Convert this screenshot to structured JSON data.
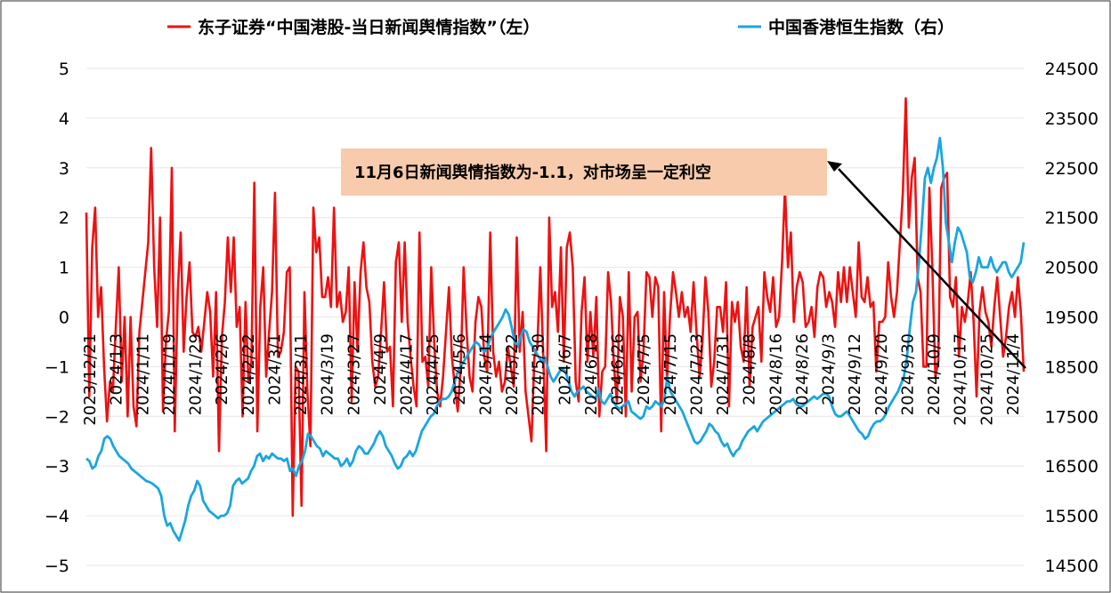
{
  "chart_data": {
    "type": "line",
    "grid": true,
    "legend_position": "top",
    "y_left_lim": [
      -5,
      5
    ],
    "y_left_ticks": [
      "5",
      "4",
      "3",
      "2",
      "1",
      "0",
      "−1",
      "−2",
      "−3",
      "−4",
      "−5"
    ],
    "y_right_lim": [
      14500,
      24500
    ],
    "y_right_ticks": [
      "24500",
      "23500",
      "22500",
      "21500",
      "20500",
      "19500",
      "18500",
      "17500",
      "16500",
      "15500",
      "14500"
    ],
    "x_tick_labels": [
      "2023/12/21",
      "2024/1/3",
      "2024/1/11",
      "2024/1/19",
      "2024/1/29",
      "2024/2/6",
      "2024/2/22",
      "2024/3/1",
      "2024/3/11",
      "2024/3/19",
      "2024/3/27",
      "2024/4/9",
      "2024/4/17",
      "2024/4/25",
      "2024/5/6",
      "2024/5/14",
      "2024/5/22",
      "2024/5/30",
      "2024/6/7",
      "2024/6/18",
      "2024/6/26",
      "2024/7/5",
      "2024/7/15",
      "2024/7/23",
      "2024/7/31",
      "2024/8/8",
      "2024/8/16",
      "2024/8/26",
      "2024/9/3",
      "2024/9/12",
      "2024/9/20",
      "2024/9/30",
      "2024/10/9",
      "2024/10/17",
      "2024/10/25",
      "2024/11/4"
    ],
    "series": [
      {
        "name": "东子证券“中国港股-当日新闻舆情指数”（左）",
        "axis": "left",
        "color": "#ee1111",
        "values": [
          2.1,
          -1.6,
          1.4,
          2.2,
          0,
          0.6,
          -1.0,
          -2.1,
          -1.3,
          -1.5,
          -0.2,
          1.0,
          -1.3,
          0,
          -2.0,
          0,
          -1.8,
          -2.2,
          -0.3,
          0.3,
          0.9,
          1.5,
          3.4,
          1.0,
          -0.2,
          2.0,
          -1.9,
          -0.5,
          0.1,
          3.0,
          -2.3,
          0.5,
          1.7,
          -0.7,
          0.4,
          1.1,
          -0.3,
          -0.4,
          -0.2,
          -0.7,
          -0.1,
          0.5,
          0.1,
          -1.2,
          0.5,
          -2.7,
          -0.4,
          0.3,
          1.6,
          0.5,
          1.6,
          -0.2,
          0.2,
          -2.0,
          0.3,
          -1.3,
          -0.9,
          2.7,
          -2.3,
          0.2,
          1.0,
          -1.2,
          -0.3,
          0.5,
          2.5,
          -0.8,
          -0.7,
          -0.3,
          0.9,
          1.0,
          -4.0,
          -1.0,
          -1.1,
          -3.8,
          0.5,
          -1.5,
          -2.6,
          2.2,
          1.3,
          1.6,
          0.4,
          0.4,
          0.8,
          0.2,
          2.2,
          0.2,
          0.5,
          -0.1,
          0.1,
          1.0,
          -1.7,
          0.7,
          -0.7,
          0.9,
          1.5,
          0.6,
          0.3,
          -0.9,
          -1.4,
          -1.2,
          -0.3,
          0.7,
          -0.7,
          -0.6,
          -1.8,
          1.1,
          1.5,
          -0.1,
          1.5,
          -0.1,
          -0.8,
          -1.4,
          -1.8,
          1.7,
          -0.9,
          -0.8,
          -1.4,
          1.0,
          -0.5,
          -1.5,
          -1.8,
          -1.2,
          -0.3,
          0.6,
          -0.8,
          -1.4,
          -1.9,
          -1.0,
          1.0,
          -0.3,
          -1.2,
          -1.5,
          -0.1,
          0.4,
          0.2,
          -0.8,
          -1.1,
          1.7,
          -0.7,
          -1.2,
          -0.9,
          -1.5,
          -1.3,
          -0.6,
          -1.0,
          -1.4,
          1.6,
          -0.7,
          0.1,
          -1.5,
          -2.0,
          -2.5,
          -0.8,
          -0.6,
          1.0,
          -0.8,
          -2.7,
          2.0,
          0.2,
          0.5,
          -0.3,
          1.4,
          -0.9,
          1.4,
          1.7,
          1.0,
          -1.3,
          -1.7,
          0.1,
          0.8,
          -0.9,
          0.1,
          -0.8,
          0.4,
          -2.0,
          -1.1,
          -1.0,
          0.9,
          0.3,
          -1.0,
          -1.7,
          0.4,
          0,
          -2.0,
          0.9,
          -1.5,
          0,
          0.1,
          -1.3,
          -0.7,
          0.9,
          0.8,
          0,
          0.8,
          0.6,
          -2.3,
          0.5,
          -1.3,
          0,
          0.9,
          0.5,
          0,
          0.5,
          0,
          0.2,
          -0.3,
          0.7,
          -0.3,
          -1.2,
          -0.5,
          0.8,
          0.1,
          -1.4,
          -0.9,
          0.2,
          0.2,
          -0.3,
          0.7,
          -1.8,
          0.3,
          -0.1,
          0.3,
          -0.6,
          -0.9,
          0.6,
          -1.4,
          -0.2,
          0,
          0.2,
          -0.9,
          0.9,
          0.4,
          0.1,
          0.8,
          -0.2,
          0,
          1.1,
          2.6,
          1.0,
          1.7,
          -0.1,
          0.6,
          0.9,
          0.7,
          -0.2,
          -0.1,
          0.2,
          -0.4,
          0.6,
          0.9,
          0.8,
          0.2,
          0.5,
          0.3,
          -0.2,
          0.9,
          0.3,
          1.0,
          0.3,
          1.0,
          0.5,
          0,
          1.5,
          0.4,
          0.3,
          0.8,
          0.2,
          0.3,
          -1.1,
          -0.1,
          -0.1,
          0,
          1.1,
          0.4,
          0,
          0.5,
          1.5,
          2.5,
          4.4,
          1.8,
          2.8,
          3.2,
          0.8,
          0.5,
          -1.0,
          -1.0,
          2.6,
          1.0,
          -1.2,
          -0.9,
          2.6,
          2.8,
          2.9,
          0.4,
          0.2,
          0.8,
          -0.8,
          0.2,
          -0.1,
          0.3,
          0.9,
          -0.1,
          -1.6,
          0.1,
          0.6,
          0.1,
          -0.1,
          -0.6,
          0.2,
          0.8,
          0,
          -0.8,
          -0.4,
          0.2,
          0.5,
          0,
          0.8,
          0.1,
          -1.1
        ]
      },
      {
        "name": "中国香港恒生指数（右）",
        "axis": "right",
        "color": "#1aa6e0",
        "values": [
          16650,
          16600,
          16450,
          16500,
          16700,
          16800,
          17050,
          17100,
          17050,
          16900,
          16800,
          16700,
          16650,
          16600,
          16550,
          16450,
          16400,
          16350,
          16300,
          16250,
          16200,
          16180,
          16150,
          16100,
          16050,
          15900,
          15500,
          15300,
          15350,
          15200,
          15100,
          15000,
          15200,
          15400,
          15700,
          15900,
          16000,
          16200,
          16100,
          15800,
          15700,
          15600,
          15550,
          15500,
          15450,
          15500,
          15500,
          15550,
          15700,
          16100,
          16200,
          16250,
          16150,
          16200,
          16250,
          16400,
          16500,
          16700,
          16750,
          16600,
          16700,
          16650,
          16750,
          16700,
          16650,
          16650,
          16600,
          16650,
          16400,
          16450,
          16300,
          16500,
          16600,
          16800,
          17150,
          17100,
          17000,
          16900,
          16850,
          16700,
          16800,
          16750,
          16700,
          16650,
          16650,
          16500,
          16550,
          16650,
          16500,
          16600,
          16800,
          16900,
          16850,
          16750,
          16750,
          16850,
          16950,
          17100,
          17200,
          17100,
          16900,
          16800,
          16700,
          16550,
          16450,
          16500,
          16650,
          16700,
          16800,
          16700,
          16800,
          17000,
          17200,
          17300,
          17400,
          17500,
          17550,
          17700,
          17800,
          17850,
          17850,
          17900,
          18000,
          18200,
          18400,
          18500,
          18600,
          18700,
          18800,
          18900,
          19000,
          18950,
          18850,
          18800,
          18900,
          19100,
          19200,
          19300,
          19400,
          19500,
          19650,
          19550,
          19300,
          19000,
          18900,
          19100,
          19250,
          19200,
          19000,
          18900,
          18800,
          18700,
          18600,
          18700,
          18500,
          18300,
          18200,
          18300,
          18400,
          18450,
          18400,
          18200,
          18000,
          17900,
          18000,
          18050,
          18100,
          18000,
          17950,
          17900,
          17850,
          18050,
          17800,
          17750,
          17850,
          17950,
          17800,
          17700,
          17650,
          17700,
          17750,
          17800,
          17600,
          17550,
          17500,
          17450,
          17500,
          17700,
          17650,
          17700,
          17800,
          17750,
          17700,
          17850,
          18300,
          18000,
          17900,
          17800,
          17700,
          17600,
          17450,
          17300,
          17150,
          17000,
          16950,
          17000,
          17100,
          17200,
          17350,
          17300,
          17200,
          17150,
          17000,
          16900,
          16950,
          16800,
          16700,
          16800,
          16850,
          17000,
          17100,
          17200,
          17250,
          17300,
          17200,
          17300,
          17400,
          17450,
          17500,
          17550,
          17600,
          17650,
          17700,
          17750,
          17800,
          17800,
          17850,
          17750,
          17700,
          17700,
          17750,
          17800,
          17850,
          17900,
          17850,
          17900,
          17950,
          17950,
          17900,
          17700,
          17550,
          17500,
          17500,
          17550,
          17600,
          17500,
          17400,
          17300,
          17200,
          17150,
          17050,
          17100,
          17250,
          17350,
          17400,
          17400,
          17450,
          17550,
          17700,
          17800,
          17900,
          18000,
          18150,
          18300,
          18700,
          19300,
          19800,
          20000,
          20600,
          21400,
          22300,
          22500,
          22200,
          22500,
          22700,
          23100,
          22500,
          21400,
          21000,
          20600,
          21000,
          21300,
          21200,
          21000,
          20800,
          20300,
          20200,
          20400,
          20700,
          20500,
          20500,
          20500,
          20700,
          20500,
          20400,
          20500,
          20600,
          20600,
          20400,
          20300,
          20400,
          20500,
          20600,
          21000
        ]
      }
    ]
  },
  "annotation": {
    "text": "11月6日新闻舆情指数为-1.1，对市场呈一定利空",
    "box_color": "#f7cbab"
  }
}
